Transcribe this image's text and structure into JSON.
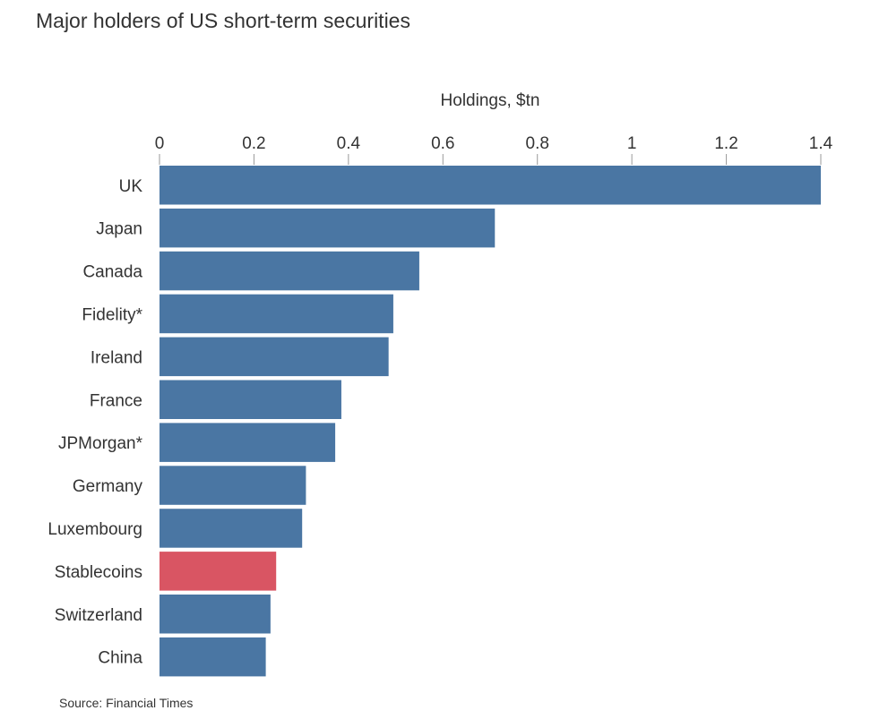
{
  "chart_data": {
    "type": "bar",
    "orientation": "horizontal",
    "title": "Major holders of US short-term securities",
    "xlabel": "Holdings, $tn",
    "ylabel": "",
    "xlim": [
      0,
      1.4
    ],
    "x_ticks": [
      "0",
      "0.2",
      "0.4",
      "0.6",
      "0.8",
      "1",
      "1.2",
      "1.4"
    ],
    "x_tick_values": [
      0,
      0.2,
      0.4,
      0.6,
      0.8,
      1,
      1.2,
      1.4
    ],
    "axis_position": "top",
    "grid": false,
    "categories": [
      "UK",
      "Japan",
      "Canada",
      "Fidelity*",
      "Ireland",
      "France",
      "JPMorgan*",
      "Germany",
      "Luxembourg",
      "Stablecoins",
      "Switzerland",
      "China"
    ],
    "values": [
      1.4,
      0.71,
      0.55,
      0.495,
      0.485,
      0.385,
      0.372,
      0.31,
      0.302,
      0.247,
      0.235,
      0.225
    ],
    "colors": [
      "#4a76a3",
      "#4a76a3",
      "#4a76a3",
      "#4a76a3",
      "#4a76a3",
      "#4a76a3",
      "#4a76a3",
      "#4a76a3",
      "#4a76a3",
      "#d95563",
      "#4a76a3",
      "#4a76a3"
    ],
    "source": "Source: Financial Times"
  }
}
